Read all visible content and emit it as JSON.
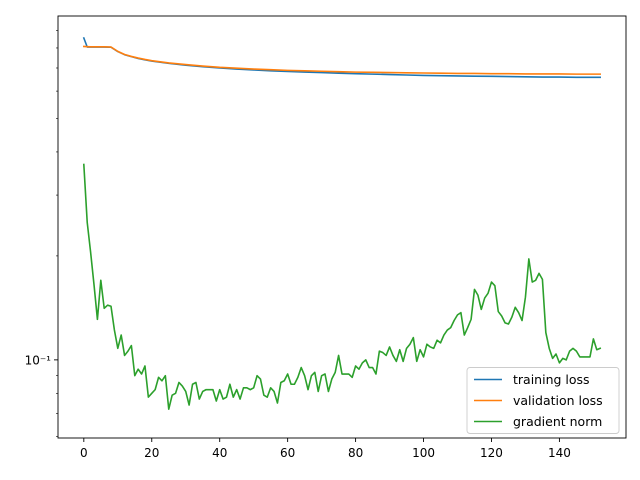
{
  "chart_data": {
    "type": "line",
    "title": "",
    "xlabel": "",
    "ylabel": "",
    "xlim": [
      -7.6,
      159.6
    ],
    "ylim": [
      0.0594,
      0.99
    ],
    "yscale": "log",
    "x_ticks": [
      0,
      20,
      40,
      60,
      80,
      100,
      120,
      140
    ],
    "y_tick_labels": [
      {
        "value": 0.1,
        "label": "10⁻¹"
      }
    ],
    "grid": false,
    "legend_position": "lower-right",
    "series": [
      {
        "name": "training loss",
        "color": "#1f77b4",
        "x": [
          0,
          1,
          2,
          4,
          6,
          8,
          10,
          12,
          14,
          16,
          18,
          20,
          25,
          30,
          35,
          40,
          45,
          50,
          55,
          60,
          65,
          70,
          75,
          80,
          85,
          90,
          95,
          100,
          105,
          110,
          115,
          120,
          125,
          130,
          135,
          140,
          145,
          150,
          152
        ],
        "y": [
          0.855,
          0.805,
          0.805,
          0.805,
          0.805,
          0.804,
          0.781,
          0.765,
          0.755,
          0.746,
          0.739,
          0.733,
          0.722,
          0.713,
          0.706,
          0.7,
          0.695,
          0.691,
          0.687,
          0.684,
          0.681,
          0.679,
          0.676,
          0.674,
          0.672,
          0.67,
          0.668,
          0.666,
          0.665,
          0.664,
          0.663,
          0.662,
          0.661,
          0.66,
          0.659,
          0.659,
          0.658,
          0.658,
          0.658
        ]
      },
      {
        "name": "validation loss",
        "color": "#ff7f0e",
        "x": [
          0,
          1,
          2,
          4,
          6,
          8,
          10,
          12,
          14,
          16,
          18,
          20,
          25,
          30,
          35,
          40,
          45,
          50,
          55,
          60,
          65,
          70,
          75,
          80,
          85,
          90,
          95,
          100,
          105,
          110,
          115,
          120,
          125,
          130,
          135,
          140,
          145,
          150,
          152
        ],
        "y": [
          0.808,
          0.807,
          0.806,
          0.806,
          0.806,
          0.805,
          0.782,
          0.766,
          0.756,
          0.748,
          0.741,
          0.735,
          0.724,
          0.716,
          0.709,
          0.703,
          0.699,
          0.695,
          0.692,
          0.689,
          0.687,
          0.685,
          0.683,
          0.681,
          0.68,
          0.679,
          0.678,
          0.677,
          0.676,
          0.675,
          0.675,
          0.674,
          0.674,
          0.673,
          0.673,
          0.673,
          0.672,
          0.672,
          0.672
        ]
      },
      {
        "name": "gradient norm",
        "color": "#2ca02c",
        "x": [
          0,
          1,
          2,
          3,
          4,
          5,
          6,
          7,
          8,
          9,
          10,
          11,
          12,
          13,
          14,
          15,
          16,
          17,
          18,
          19,
          20,
          21,
          22,
          23,
          24,
          25,
          26,
          27,
          28,
          29,
          30,
          31,
          32,
          33,
          34,
          35,
          36,
          37,
          38,
          39,
          40,
          41,
          42,
          43,
          44,
          45,
          46,
          47,
          48,
          49,
          50,
          51,
          52,
          53,
          54,
          55,
          56,
          57,
          58,
          59,
          60,
          61,
          62,
          63,
          64,
          65,
          66,
          67,
          68,
          69,
          70,
          71,
          72,
          73,
          74,
          75,
          76,
          77,
          78,
          79,
          80,
          81,
          82,
          83,
          84,
          85,
          86,
          87,
          88,
          89,
          90,
          91,
          92,
          93,
          94,
          95,
          96,
          97,
          98,
          99,
          100,
          101,
          102,
          103,
          104,
          105,
          106,
          107,
          108,
          109,
          110,
          111,
          112,
          113,
          114,
          115,
          116,
          117,
          118,
          119,
          120,
          121,
          122,
          123,
          124,
          125,
          126,
          127,
          128,
          129,
          130,
          131,
          132,
          133,
          134,
          135,
          136,
          137,
          138,
          139,
          140,
          141,
          142,
          143,
          144,
          145,
          146,
          147,
          148,
          149,
          150,
          151,
          152
        ],
        "y": [
          0.368,
          0.25,
          0.205,
          0.165,
          0.131,
          0.17,
          0.141,
          0.144,
          0.143,
          0.122,
          0.108,
          0.118,
          0.103,
          0.106,
          0.11,
          0.09,
          0.094,
          0.091,
          0.096,
          0.078,
          0.08,
          0.082,
          0.089,
          0.087,
          0.09,
          0.072,
          0.079,
          0.08,
          0.086,
          0.084,
          0.081,
          0.074,
          0.085,
          0.086,
          0.077,
          0.081,
          0.082,
          0.082,
          0.082,
          0.076,
          0.082,
          0.077,
          0.078,
          0.085,
          0.078,
          0.082,
          0.077,
          0.083,
          0.083,
          0.082,
          0.083,
          0.09,
          0.088,
          0.079,
          0.078,
          0.083,
          0.081,
          0.075,
          0.086,
          0.087,
          0.091,
          0.085,
          0.085,
          0.089,
          0.095,
          0.09,
          0.082,
          0.09,
          0.092,
          0.081,
          0.09,
          0.091,
          0.081,
          0.088,
          0.092,
          0.103,
          0.091,
          0.091,
          0.091,
          0.089,
          0.096,
          0.094,
          0.098,
          0.1,
          0.095,
          0.095,
          0.091,
          0.106,
          0.105,
          0.103,
          0.109,
          0.103,
          0.099,
          0.107,
          0.099,
          0.108,
          0.111,
          0.116,
          0.099,
          0.107,
          0.102,
          0.111,
          0.109,
          0.108,
          0.114,
          0.112,
          0.118,
          0.122,
          0.124,
          0.13,
          0.135,
          0.137,
          0.118,
          0.124,
          0.131,
          0.16,
          0.154,
          0.14,
          0.151,
          0.156,
          0.168,
          0.164,
          0.138,
          0.134,
          0.128,
          0.127,
          0.133,
          0.142,
          0.137,
          0.13,
          0.152,
          0.196,
          0.168,
          0.17,
          0.178,
          0.171,
          0.12,
          0.108,
          0.101,
          0.104,
          0.098,
          0.101,
          0.1,
          0.106,
          0.108,
          0.106,
          0.102,
          0.102,
          0.102,
          0.102,
          0.115,
          0.107,
          0.108
        ]
      }
    ]
  }
}
